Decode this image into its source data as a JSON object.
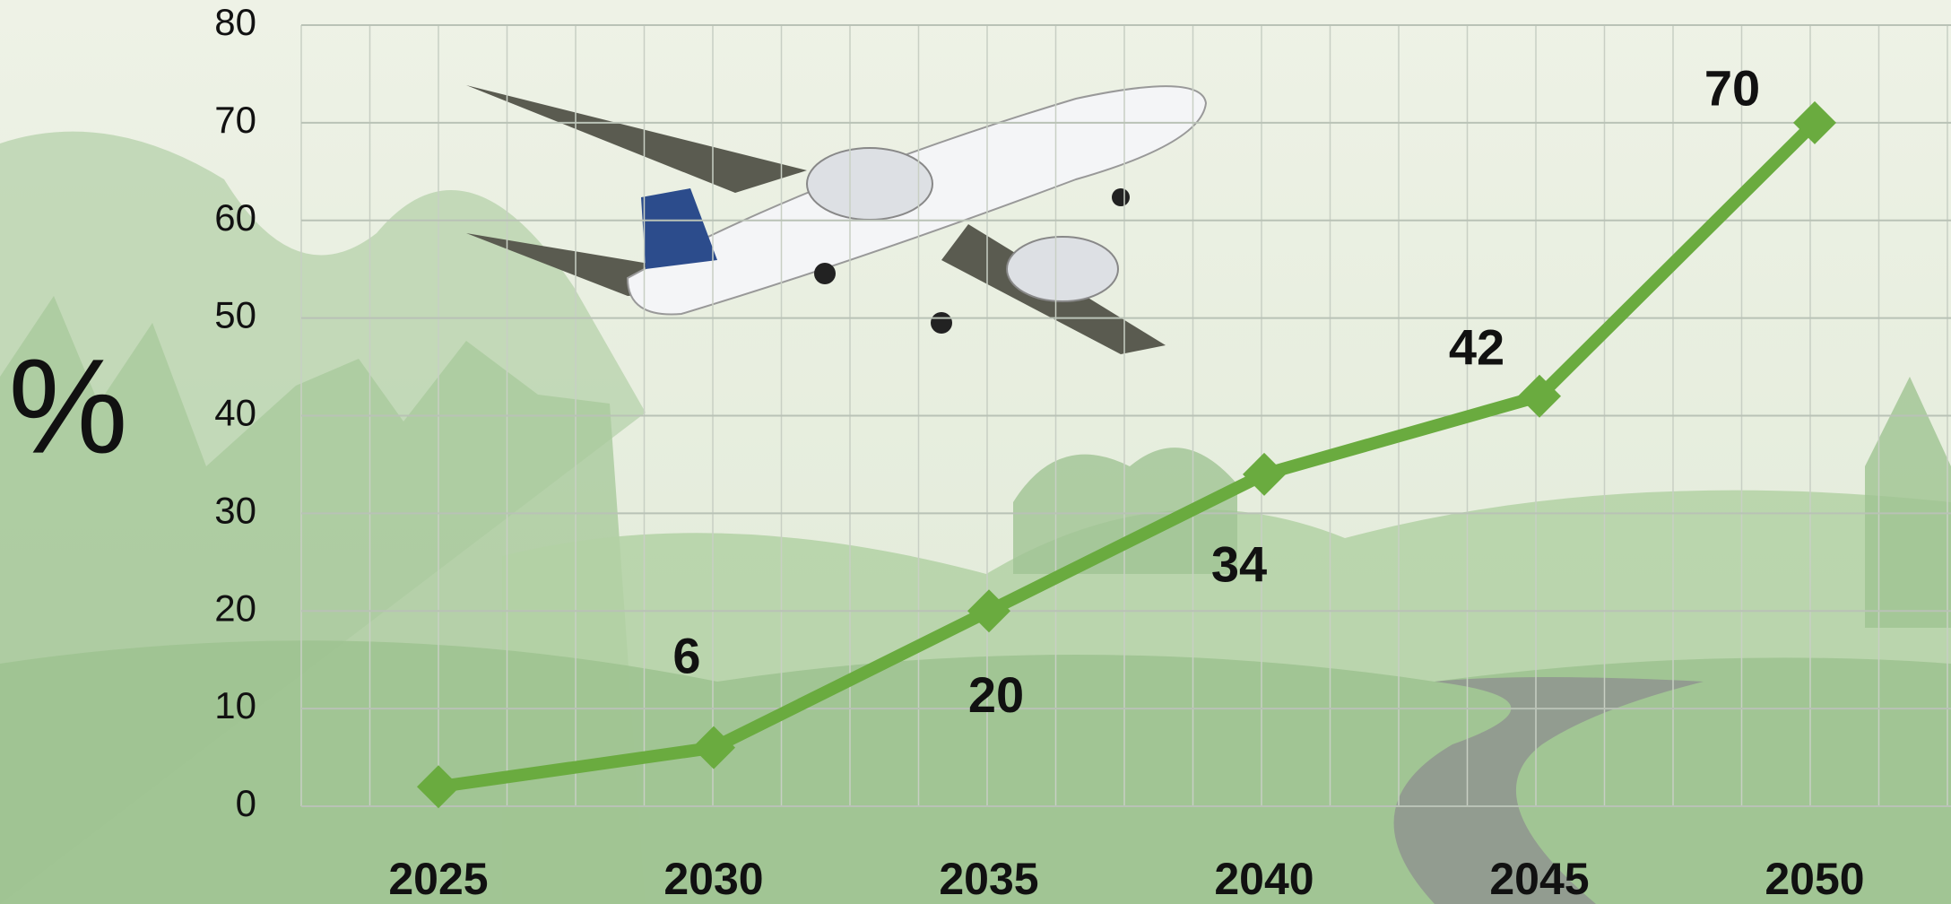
{
  "chart_data": {
    "type": "line",
    "ylabel": "%",
    "categories": [
      "2025",
      "2030",
      "2035",
      "2040",
      "2045",
      "2050"
    ],
    "series": [
      {
        "color": "#6aab3f",
        "values": [
          2,
          6,
          20,
          34,
          42,
          70
        ],
        "value_labels": [
          null,
          "6",
          "20",
          "34",
          "42",
          "70"
        ]
      }
    ],
    "ylim": [
      0,
      80
    ],
    "yticks": [
      0,
      10,
      20,
      30,
      40,
      50,
      60,
      70,
      80
    ],
    "grid": true
  }
}
